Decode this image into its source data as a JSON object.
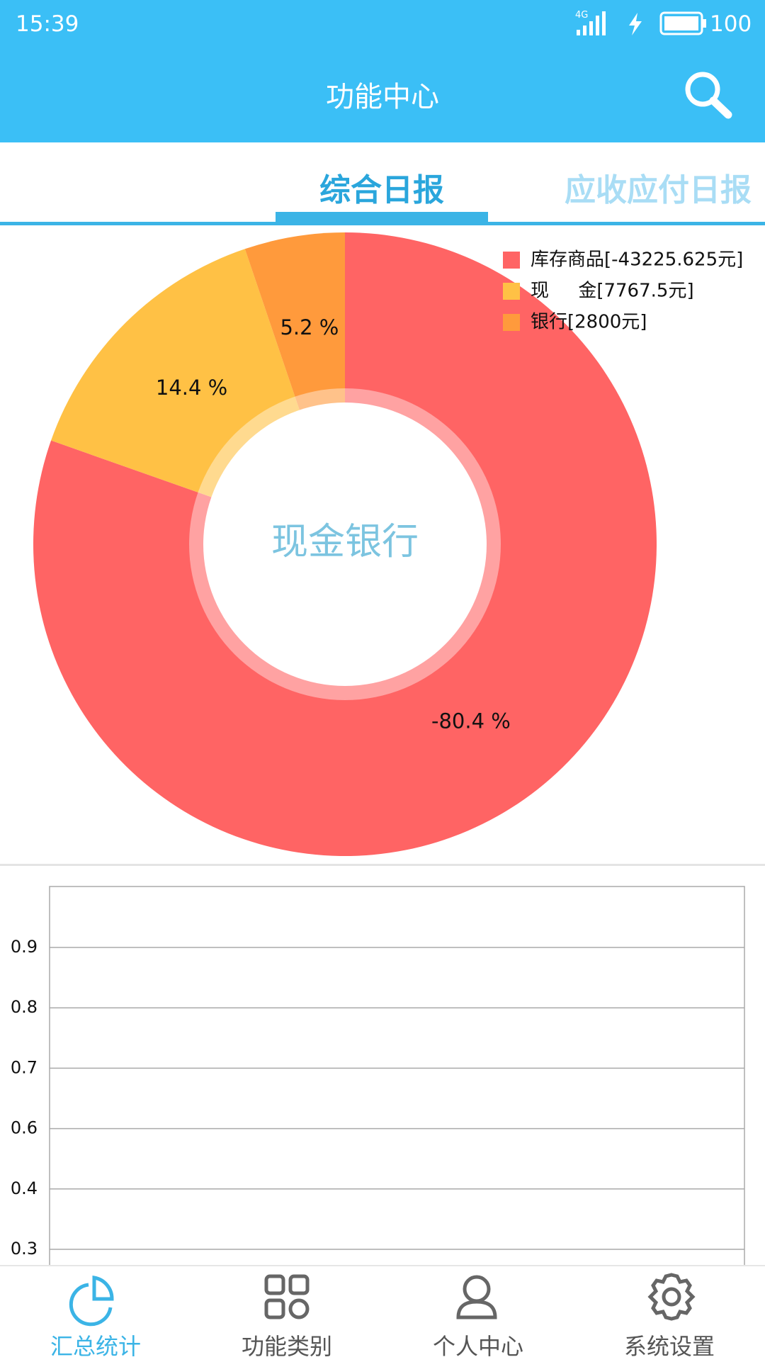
{
  "status_bar": {
    "time": "15:39",
    "network": "4G",
    "battery": "100"
  },
  "header": {
    "title": "功能中心"
  },
  "tabs": [
    "综合日报",
    "应收应付日报"
  ],
  "chart_data": {
    "type": "pie",
    "center_label": "现金银行",
    "categories": [
      "库存商品[-43225.625元]",
      "现     金[7767.5元]",
      "银行[2800元]"
    ],
    "values": [
      -80.4,
      14.4,
      5.2
    ],
    "value_labels": [
      "-80.4 %",
      "14.4 %",
      "5.2 %"
    ],
    "colors": [
      "#ff6464",
      "#ffc145",
      "#ff9a3c"
    ],
    "legend": "top-right"
  },
  "lower_chart": {
    "y_labels": [
      "0.9",
      "0.8",
      "0.7",
      "0.6",
      "0.4",
      "0.3"
    ]
  },
  "nav": [
    "汇总统计",
    "功能类别",
    "个人中心",
    "系统设置"
  ]
}
